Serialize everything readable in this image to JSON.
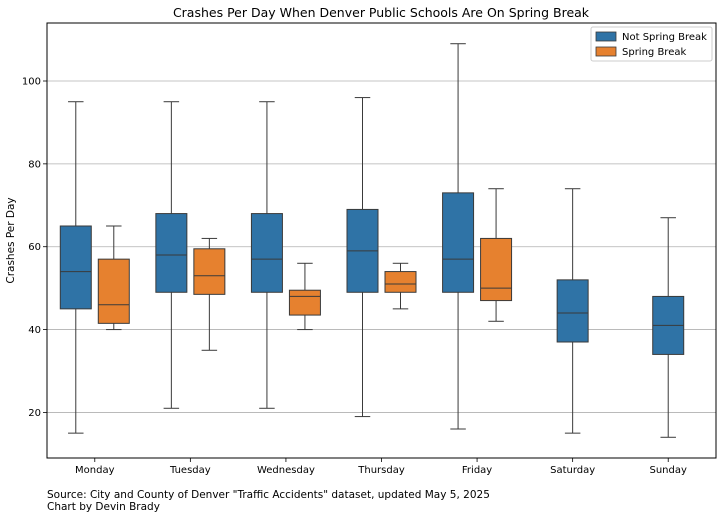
{
  "chart_data": {
    "type": "box",
    "title": "Crashes Per Day When Denver Public Schools Are On Spring Break",
    "xlabel": "",
    "ylabel": "Crashes Per Day",
    "ylim": [
      9,
      114
    ],
    "yticks": [
      20,
      40,
      60,
      80,
      100
    ],
    "grid": "y",
    "legend_position": "top-right",
    "categories": [
      "Monday",
      "Tuesday",
      "Wednesday",
      "Thursday",
      "Friday",
      "Saturday",
      "Sunday"
    ],
    "series": [
      {
        "name": "Not Spring Break",
        "color": "#2f73a6",
        "boxes": [
          {
            "category": "Monday",
            "min": 15,
            "q1": 45,
            "median": 54,
            "q3": 65,
            "max": 95
          },
          {
            "category": "Tuesday",
            "min": 21,
            "q1": 49,
            "median": 58,
            "q3": 68,
            "max": 95
          },
          {
            "category": "Wednesday",
            "min": 21,
            "q1": 49,
            "median": 57,
            "q3": 68,
            "max": 95
          },
          {
            "category": "Thursday",
            "min": 19,
            "q1": 49,
            "median": 59,
            "q3": 69,
            "max": 96
          },
          {
            "category": "Friday",
            "min": 16,
            "q1": 49,
            "median": 57,
            "q3": 73,
            "max": 109
          },
          {
            "category": "Saturday",
            "min": 15,
            "q1": 37,
            "median": 44,
            "q3": 52,
            "max": 74
          },
          {
            "category": "Sunday",
            "min": 14,
            "q1": 34,
            "median": 41,
            "q3": 48,
            "max": 67
          }
        ]
      },
      {
        "name": "Spring Break",
        "color": "#e6812f",
        "boxes": [
          {
            "category": "Monday",
            "min": 40,
            "q1": 41.5,
            "median": 46,
            "q3": 57,
            "max": 65
          },
          {
            "category": "Tuesday",
            "min": 35,
            "q1": 48.5,
            "median": 53,
            "q3": 59.5,
            "max": 62
          },
          {
            "category": "Wednesday",
            "min": 40,
            "q1": 43.5,
            "median": 48,
            "q3": 49.5,
            "max": 56
          },
          {
            "category": "Thursday",
            "min": 45,
            "q1": 49,
            "median": 51,
            "q3": 54,
            "max": 56
          },
          {
            "category": "Friday",
            "min": 42,
            "q1": 47,
            "median": 50,
            "q3": 62,
            "max": 74
          }
        ]
      }
    ]
  },
  "source_text": "Source: City and County of Denver \"Traffic Accidents\" dataset, updated May 5, 2025",
  "credit_text": "Chart by Devin Brady"
}
